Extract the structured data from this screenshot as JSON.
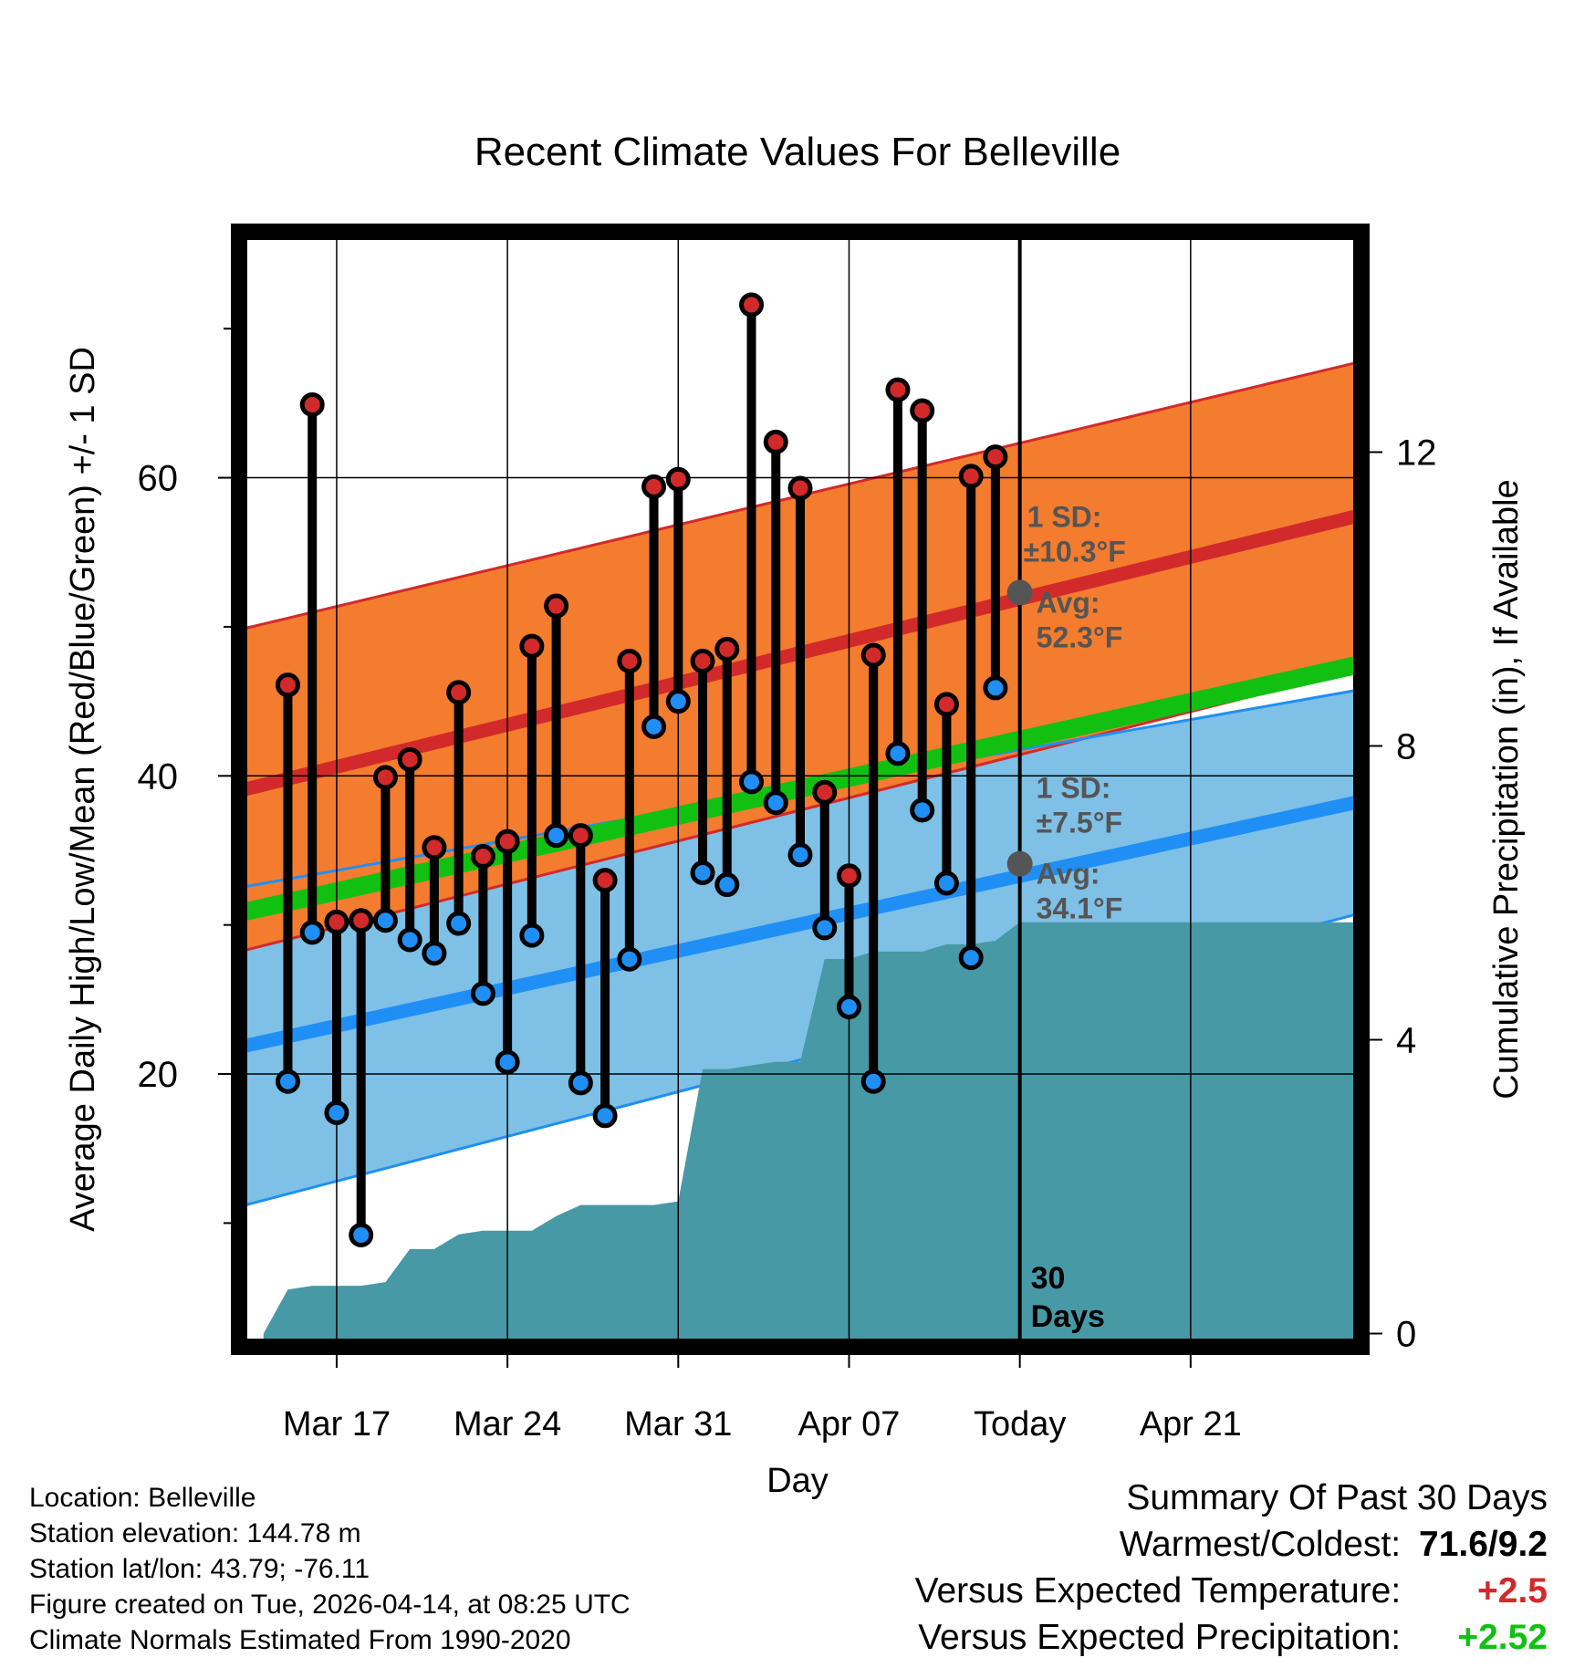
{
  "chart_data": {
    "type": "line",
    "title": "Recent Climate Values For Belleville",
    "xlabel": "Day",
    "ylabel_left": "Average Daily High/Low/Mean (Red/Blue/Green) +/- 1 SD",
    "ylabel_right": "Cumulative Precipitation (in), If Available",
    "x_range_days": [
      -32,
      14
    ],
    "x_ticks": [
      {
        "day": -28,
        "label": "Mar 17"
      },
      {
        "day": -21,
        "label": "Mar 24"
      },
      {
        "day": -14,
        "label": "Mar 31"
      },
      {
        "day": -7,
        "label": "Apr 07"
      },
      {
        "day": 0,
        "label": "Today"
      },
      {
        "day": 7,
        "label": "Apr 21"
      }
    ],
    "y_left_range": [
      1.7,
      76.5
    ],
    "y_left_ticks": [
      20,
      40,
      60
    ],
    "y_right_range": [
      -0.18,
      15
    ],
    "y_right_ticks": [
      0,
      4,
      8,
      12
    ],
    "normals": {
      "day_start": -32,
      "day_end": 14,
      "high_avg": [
        39.0,
        57.5
      ],
      "high_sd": [
        10.8,
        10.3
      ],
      "low_avg": [
        21.8,
        38.3
      ],
      "low_sd": [
        10.7,
        7.5
      ],
      "mean_avg": [
        30.8,
        47.5
      ]
    },
    "today_labels": {
      "high_sd": "1 SD:",
      "high_sd_value": "±10.3°F",
      "high_avg": "Avg:",
      "high_avg_value": "52.3°F",
      "high_avg_num": 52.3,
      "low_sd": "1 SD:",
      "low_sd_value": "±7.5°F",
      "low_avg": "Avg:",
      "low_avg_value": "34.1°F",
      "low_avg_num": 34.1,
      "window_count": "30",
      "window_unit": "Days"
    },
    "observations": {
      "day_start": -30,
      "highs": [
        46.1,
        64.9,
        30.2,
        30.3,
        39.9,
        41.1,
        35.2,
        45.6,
        34.6,
        35.6,
        48.7,
        51.4,
        36.0,
        33.0,
        47.7,
        59.4,
        59.9,
        47.7,
        48.5,
        71.6,
        62.4,
        59.3,
        38.9,
        33.3,
        48.1,
        65.9,
        64.5,
        44.8,
        60.1,
        61.4
      ],
      "lows": [
        19.5,
        29.5,
        17.4,
        9.2,
        30.3,
        29.0,
        28.1,
        30.1,
        25.4,
        20.8,
        29.3,
        36.0,
        19.4,
        17.2,
        27.7,
        43.3,
        45.0,
        33.5,
        32.7,
        39.6,
        38.2,
        34.7,
        29.8,
        24.5,
        19.5,
        41.5,
        37.7,
        32.8,
        27.8,
        45.9
      ]
    },
    "precipitation": {
      "day_start": -31,
      "cumulative_in": [
        0,
        0.6,
        0.65,
        0.65,
        0.65,
        0.7,
        1.15,
        1.15,
        1.35,
        1.4,
        1.4,
        1.4,
        1.6,
        1.75,
        1.75,
        1.75,
        1.75,
        1.8,
        3.6,
        3.6,
        3.65,
        3.7,
        3.7,
        5.1,
        5.1,
        5.2,
        5.2,
        5.2,
        5.3,
        5.3,
        5.35,
        5.6,
        5.6,
        5.6,
        5.6,
        5.6,
        5.6,
        5.6,
        5.6,
        5.6,
        5.6,
        5.6,
        5.6,
        5.6,
        5.6,
        5.6
      ]
    },
    "colors": {
      "high_band": "#f47c2e",
      "high_line": "#d22a2a",
      "low_band": "#7fc0e6",
      "low_line": "#1f8ff5",
      "mean_line": "#12c012",
      "precip": "#4799a5",
      "high_dot": "#d22a2a",
      "low_dot": "#1f8ff5",
      "annotation": "#555555"
    }
  },
  "info": {
    "location": "Location: Belleville",
    "elevation": "Station elevation: 144.78 m",
    "latlon": "Station lat/lon: 43.79; -76.11",
    "created": "Figure created on Tue, 2026-04-14, at 08:25 UTC",
    "normals": "Climate Normals Estimated From 1990-2020"
  },
  "summary": {
    "title": "Summary Of Past 30 Days",
    "warm_cold_label": "Warmest/Coldest:",
    "warm_cold_value": "71.6/9.2",
    "temp_label": "Versus Expected Temperature:",
    "temp_value": "+2.5",
    "temp_color": "#d22a2a",
    "precip_label": "Versus Expected Precipitation:",
    "precip_value": "+2.52",
    "precip_color": "#12c012"
  }
}
